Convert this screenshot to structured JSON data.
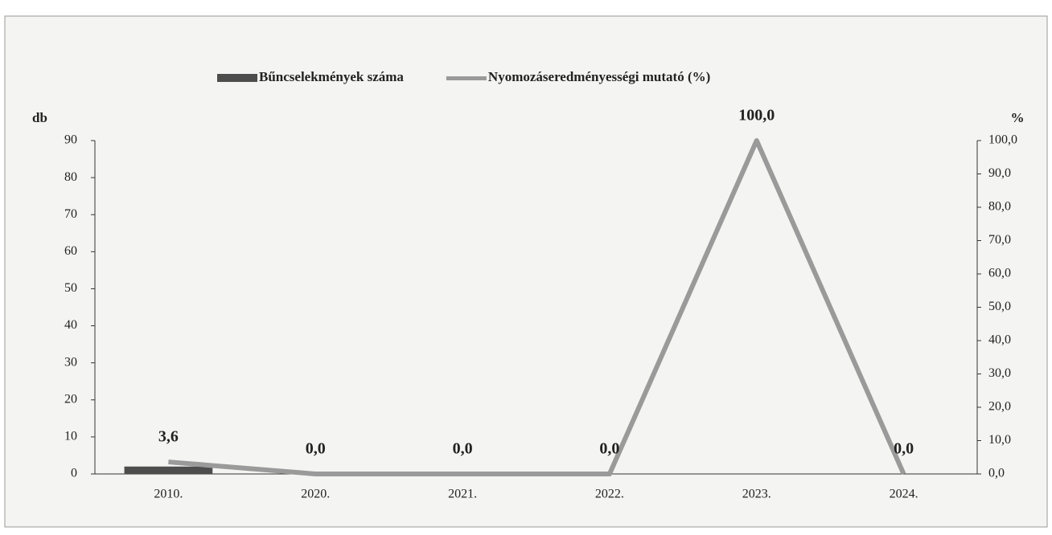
{
  "chart_data": {
    "type": "bar_line",
    "categories": [
      "2010.",
      "2020.",
      "2021.",
      "2022.",
      "2023.",
      "2024."
    ],
    "ylabel": "db",
    "y2label": "%",
    "ylim": [
      0,
      90
    ],
    "yticks": [
      0,
      10,
      20,
      30,
      40,
      50,
      60,
      70,
      80,
      90
    ],
    "y2lim": [
      0,
      100
    ],
    "y2ticks": [
      {
        "value": 0,
        "label": "0,0"
      },
      {
        "value": 10,
        "label": "10,0"
      },
      {
        "value": 20,
        "label": "20,0"
      },
      {
        "value": 30,
        "label": "30,0"
      },
      {
        "value": 40,
        "label": "40,0"
      },
      {
        "value": 50,
        "label": "50,0"
      },
      {
        "value": 60,
        "label": "60,0"
      },
      {
        "value": 70,
        "label": "70,0"
      },
      {
        "value": 80,
        "label": "80,0"
      },
      {
        "value": 90,
        "label": "90,0"
      },
      {
        "value": 100,
        "label": "100,0"
      }
    ],
    "series": [
      {
        "name": "Bűncselekmények száma",
        "type": "bar",
        "color": "#4d4d4d",
        "values": [
          2,
          0,
          0,
          0,
          0,
          0
        ]
      },
      {
        "name": "Nyomozáseredményességi mutató (%)",
        "type": "line",
        "axis": "y2",
        "color": "#9a9a9a",
        "values": [
          3.6,
          0,
          0,
          0,
          100,
          0
        ],
        "value_labels": [
          "3,6",
          "0,0",
          "0,0",
          "0,0",
          "100,0",
          "0,0"
        ]
      }
    ]
  }
}
